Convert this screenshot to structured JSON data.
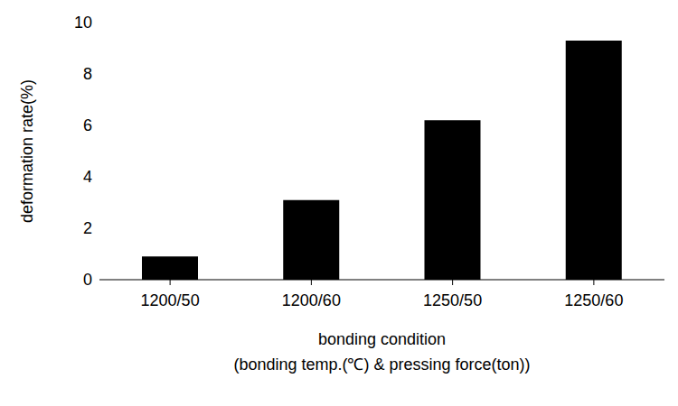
{
  "chart_data": {
    "type": "bar",
    "categories": [
      "1200/50",
      "1200/60",
      "1250/50",
      "1250/60"
    ],
    "values": [
      0.9,
      3.1,
      6.2,
      9.3
    ],
    "color": "#000000",
    "x_label": [
      "bonding condition",
      "(bonding temp.(℃) & pressing force(ton))"
    ],
    "y_label": "deformation rate(%)",
    "ylim": [
      0,
      10
    ],
    "yticks": [
      0,
      2,
      4,
      6,
      8,
      10
    ],
    "grid": false
  }
}
